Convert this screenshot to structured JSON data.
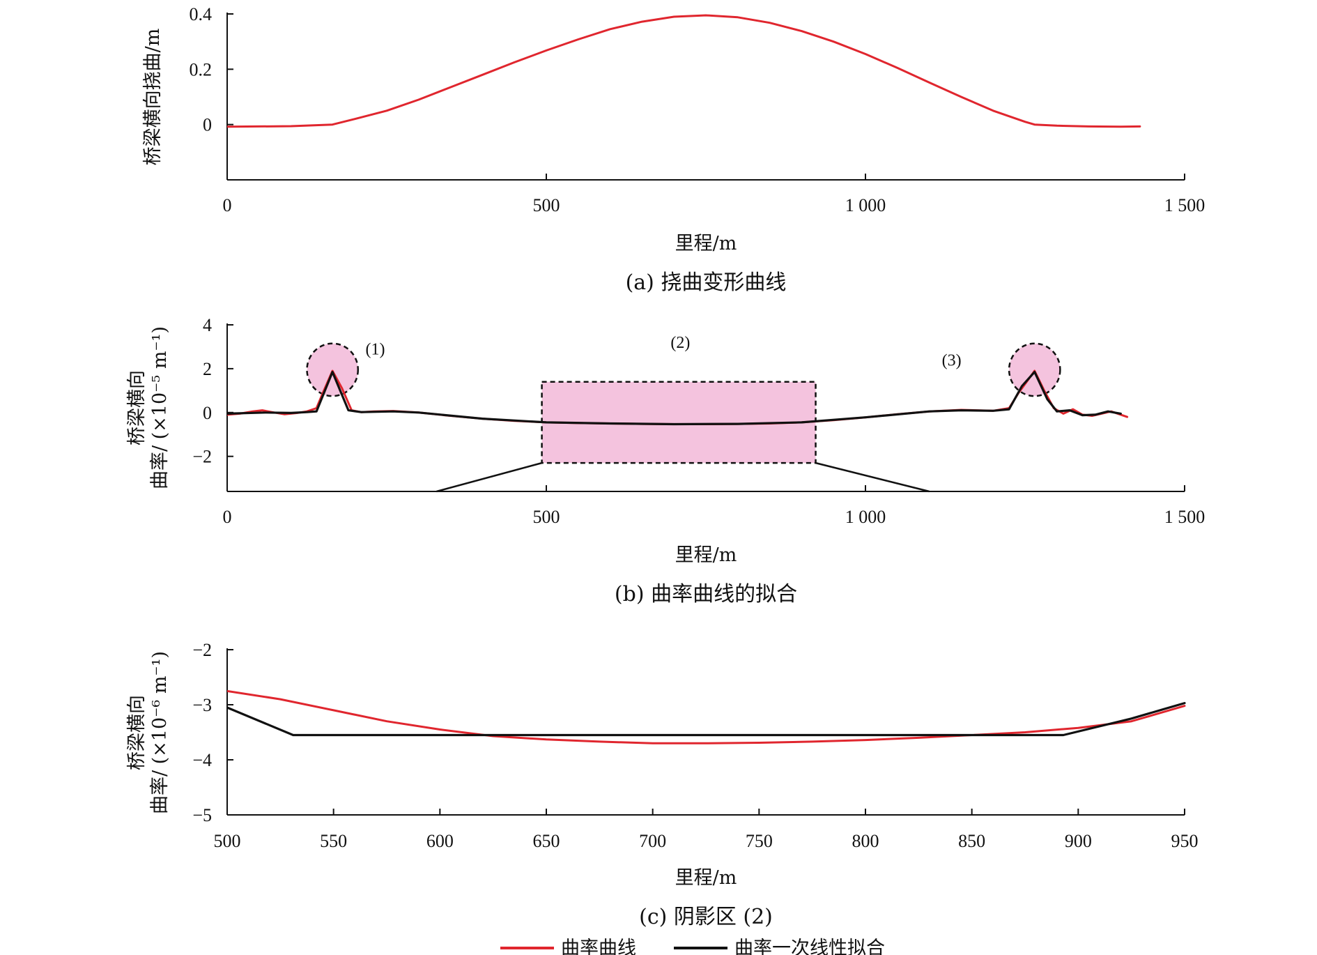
{
  "colors": {
    "curvature": "#e0262e",
    "fit": "#111111",
    "highlight": "#f4c3de"
  },
  "legend": {
    "curvature_label": "曲率曲线",
    "fit_label": "曲率一次线性拟合"
  },
  "chart_data": [
    {
      "type": "line",
      "panel": "a",
      "caption": "(a) 挠曲变形曲线",
      "xlabel": "里程/m",
      "ylabel": "桥梁横向挠曲/m",
      "xlim": [
        0,
        1500
      ],
      "ylim": [
        -0.2,
        0.4
      ],
      "xticks": [
        0,
        500,
        1000,
        1500
      ],
      "xtick_labels": [
        "0",
        "500",
        "1 000",
        "1 500"
      ],
      "yticks": [
        0,
        0.2,
        0.4
      ],
      "ytick_labels": [
        "0",
        "0.2",
        "0.4"
      ],
      "series": [
        {
          "key": "curvature",
          "x": [
            0,
            100,
            165,
            200,
            250,
            300,
            350,
            400,
            450,
            500,
            550,
            600,
            650,
            700,
            750,
            800,
            850,
            900,
            950,
            1000,
            1050,
            1100,
            1150,
            1200,
            1250,
            1265,
            1300,
            1350,
            1400,
            1430
          ],
          "values": [
            -0.008,
            -0.006,
            0.0,
            0.02,
            0.05,
            0.09,
            0.135,
            0.18,
            0.225,
            0.268,
            0.308,
            0.345,
            0.372,
            0.39,
            0.395,
            0.388,
            0.368,
            0.338,
            0.3,
            0.255,
            0.205,
            0.152,
            0.1,
            0.05,
            0.01,
            0.0,
            -0.004,
            -0.007,
            -0.008,
            -0.007
          ]
        }
      ]
    },
    {
      "type": "line",
      "panel": "b",
      "caption": "(b) 曲率曲线的拟合",
      "xlabel": "里程/m",
      "ylabel_line1": "桥梁横向",
      "ylabel_line2": "曲率/ (×10⁻⁵ m⁻¹)",
      "xlim": [
        0,
        1500
      ],
      "ylim": [
        -3.6,
        4
      ],
      "xticks": [
        0,
        500,
        1000,
        1500
      ],
      "xtick_labels": [
        "0",
        "500",
        "1 000",
        "1 500"
      ],
      "yticks": [
        -2,
        0,
        2,
        4
      ],
      "ytick_labels": [
        "−2",
        "0",
        "2",
        "4"
      ],
      "annotations": [
        {
          "label": "(1)",
          "x": 232,
          "y": 2.9
        },
        {
          "label": "(2)",
          "x": 710,
          "y": 3.2
        },
        {
          "label": "(3)",
          "x": 1135,
          "y": 2.4
        }
      ],
      "highlights": [
        {
          "kind": "ellipse",
          "cx": 165,
          "cy": 1.95,
          "rx": 40,
          "ry": 1.2
        },
        {
          "kind": "rect",
          "x0": 493,
          "x1": 922,
          "y0": -2.3,
          "y1": 1.4
        },
        {
          "kind": "ellipse",
          "cx": 1265,
          "cy": 1.95,
          "rx": 40,
          "ry": 1.2
        }
      ],
      "series": [
        {
          "key": "curvature",
          "x": [
            0,
            20,
            40,
            55,
            70,
            90,
            110,
            125,
            140,
            150,
            165,
            180,
            195,
            210,
            230,
            260,
            300,
            350,
            400,
            450,
            500,
            550,
            600,
            650,
            700,
            750,
            800,
            850,
            900,
            950,
            1000,
            1050,
            1100,
            1150,
            1200,
            1225,
            1240,
            1255,
            1265,
            1280,
            1295,
            1310,
            1325,
            1340,
            1355,
            1370,
            1385,
            1400,
            1410
          ],
          "values": [
            -0.1,
            -0.05,
            0.05,
            0.1,
            0.02,
            -0.08,
            -0.02,
            0.05,
            0.2,
            0.9,
            1.9,
            1.1,
            0.1,
            0.02,
            0.05,
            0.07,
            0.0,
            -0.15,
            -0.28,
            -0.38,
            -0.45,
            -0.48,
            -0.5,
            -0.52,
            -0.53,
            -0.53,
            -0.52,
            -0.5,
            -0.45,
            -0.35,
            -0.22,
            -0.08,
            0.05,
            0.12,
            0.08,
            0.2,
            0.9,
            1.5,
            1.9,
            1.0,
            0.2,
            -0.05,
            0.15,
            -0.1,
            -0.15,
            -0.05,
            0.05,
            -0.1,
            -0.2
          ]
        },
        {
          "key": "fit",
          "x": [
            0,
            60,
            100,
            125,
            140,
            165,
            190,
            210,
            260,
            300,
            400,
            500,
            600,
            700,
            800,
            900,
            1000,
            1100,
            1150,
            1200,
            1225,
            1245,
            1265,
            1285,
            1300,
            1320,
            1340,
            1360,
            1380,
            1400
          ],
          "values": [
            -0.05,
            0.0,
            -0.02,
            0.02,
            0.05,
            1.85,
            0.1,
            0.02,
            0.05,
            0.0,
            -0.28,
            -0.45,
            -0.5,
            -0.53,
            -0.52,
            -0.45,
            -0.22,
            0.05,
            0.1,
            0.08,
            0.15,
            1.2,
            1.85,
            0.6,
            0.05,
            0.1,
            -0.12,
            -0.1,
            0.05,
            -0.05
          ]
        }
      ]
    },
    {
      "type": "line",
      "panel": "c",
      "caption": "(c) 阴影区 (2)",
      "xlabel": "里程/m",
      "ylabel_line1": "桥梁横向",
      "ylabel_line2": "曲率/ (×10⁻⁶ m⁻¹)",
      "xlim": [
        500,
        950
      ],
      "ylim": [
        -5,
        -2
      ],
      "xticks": [
        500,
        550,
        600,
        650,
        700,
        750,
        800,
        850,
        900,
        950
      ],
      "xtick_labels": [
        "500",
        "550",
        "600",
        "650",
        "700",
        "750",
        "800",
        "850",
        "900",
        "950"
      ],
      "yticks": [
        -5,
        -4,
        -3,
        -2
      ],
      "ytick_labels": [
        "−5",
        "−4",
        "−3",
        "−2"
      ],
      "series": [
        {
          "key": "curvature",
          "x": [
            500,
            525,
            550,
            575,
            600,
            625,
            650,
            675,
            700,
            725,
            750,
            775,
            800,
            825,
            850,
            875,
            900,
            925,
            950
          ],
          "values": [
            -2.75,
            -2.9,
            -3.1,
            -3.3,
            -3.45,
            -3.57,
            -3.63,
            -3.67,
            -3.7,
            -3.7,
            -3.69,
            -3.67,
            -3.64,
            -3.6,
            -3.55,
            -3.5,
            -3.42,
            -3.3,
            -3.02
          ]
        },
        {
          "key": "fit",
          "x": [
            500,
            531,
            612,
            700,
            800,
            868,
            893,
            925,
            950
          ],
          "values": [
            -3.05,
            -3.55,
            -3.55,
            -3.55,
            -3.55,
            -3.55,
            -3.55,
            -3.25,
            -2.97
          ]
        }
      ]
    }
  ]
}
